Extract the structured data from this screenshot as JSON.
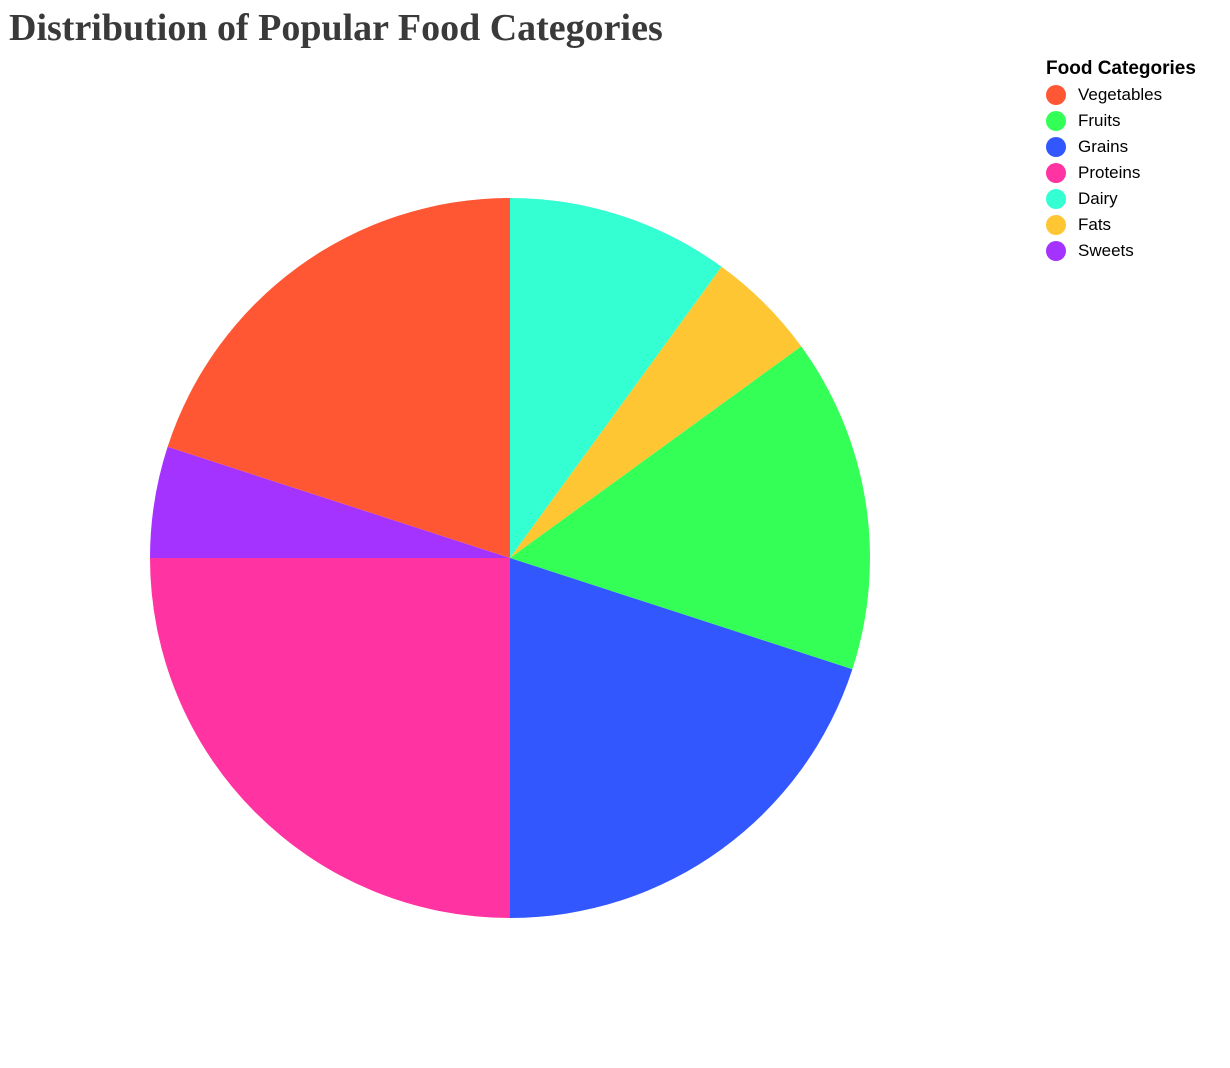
{
  "chart_data": {
    "type": "pie",
    "title": "Distribution of Popular Food Categories",
    "legend_title": "Food Categories",
    "legend_position": "top-right",
    "start_angle_deg": 0,
    "direction": "clockwise-from-top",
    "slices": [
      {
        "label": "Dairy",
        "value": 10,
        "color": "#33ffd2"
      },
      {
        "label": "Fats",
        "value": 5,
        "color": "#ffc633"
      },
      {
        "label": "Fruits",
        "value": 15,
        "color": "#33ff57"
      },
      {
        "label": "Grains",
        "value": 20,
        "color": "#3357ff"
      },
      {
        "label": "Proteins",
        "value": 25,
        "color": "#ff33a1"
      },
      {
        "label": "Sweets",
        "value": 5,
        "color": "#a533ff"
      },
      {
        "label": "Vegetables",
        "value": 20,
        "color": "#ff5733"
      }
    ],
    "legend": [
      {
        "label": "Vegetables",
        "color": "#ff5733"
      },
      {
        "label": "Fruits",
        "color": "#33ff57"
      },
      {
        "label": "Grains",
        "color": "#3357ff"
      },
      {
        "label": "Proteins",
        "color": "#ff33a1"
      },
      {
        "label": "Dairy",
        "color": "#33ffd2"
      },
      {
        "label": "Fats",
        "color": "#ffc633"
      },
      {
        "label": "Sweets",
        "color": "#a533ff"
      }
    ]
  }
}
